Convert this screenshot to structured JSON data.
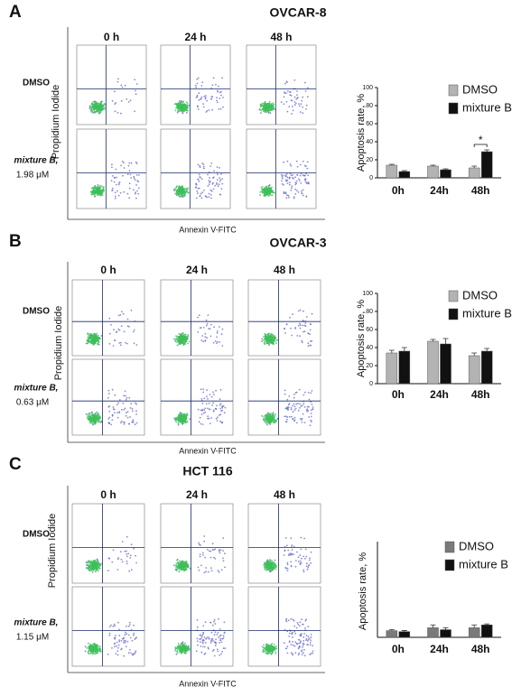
{
  "panels": [
    {
      "letter": "A",
      "title": "OVCAR-8",
      "times": [
        "0 h",
        "24 h",
        "48 h"
      ],
      "rows": [
        {
          "label": "DMSO"
        },
        {
          "label": "mixture B,",
          "dose": "1.98 μM"
        }
      ],
      "y_axis": "Propidium Iodide",
      "x_axis": "Annexin V-FITC"
    },
    {
      "letter": "B",
      "title": "OVCAR-3",
      "times": [
        "0 h",
        "24 h",
        "48 h"
      ],
      "rows": [
        {
          "label": "DMSO"
        },
        {
          "label": "mixture B,",
          "dose": "0.63 μM"
        }
      ],
      "y_axis": "Propidium Iodide",
      "x_axis": "Annexin V-FITC"
    },
    {
      "letter": "C",
      "title": "HCT 116",
      "times": [
        "0 h",
        "24 h",
        "48 h"
      ],
      "rows": [
        {
          "label": "DMSO"
        },
        {
          "label": "mixture B,",
          "dose": "1.15 μM"
        }
      ],
      "y_axis": "Propidium Iodide",
      "x_axis": "Annexin V-FITC"
    }
  ],
  "chart_data": [
    {
      "type": "bar",
      "ylabel": "Apoptosis rate, %",
      "categories": [
        "0h",
        "24h",
        "48h"
      ],
      "series": [
        {
          "name": "DMSO",
          "color": "#b3b3b3",
          "values": [
            14,
            13,
            11
          ],
          "errors": [
            1,
            1,
            2
          ]
        },
        {
          "name": "mixture B",
          "color": "#111111",
          "values": [
            7,
            9,
            29
          ],
          "errors": [
            1,
            1,
            2
          ]
        }
      ],
      "ylim": [
        0,
        100
      ],
      "yticks": [
        0,
        20,
        40,
        60,
        80,
        100
      ],
      "annotation": "*"
    },
    {
      "type": "bar",
      "ylabel": "Apoptosis rate, %",
      "categories": [
        "0h",
        "24h",
        "48h"
      ],
      "series": [
        {
          "name": "DMSO",
          "color": "#b3b3b3",
          "values": [
            34,
            47,
            31
          ],
          "errors": [
            3,
            2,
            3
          ]
        },
        {
          "name": "mixture B",
          "color": "#111111",
          "values": [
            36,
            44,
            36
          ],
          "errors": [
            4,
            6,
            3
          ]
        }
      ],
      "ylim": [
        0,
        100
      ],
      "yticks": [
        0,
        20,
        40,
        60,
        80,
        100
      ]
    },
    {
      "type": "bar",
      "ylabel": "Apoptosis rate, %",
      "categories": [
        "0h",
        "24h",
        "48h"
      ],
      "series": [
        {
          "name": "DMSO",
          "color": "#7a7a7a",
          "values": [
            7,
            10,
            10
          ],
          "errors": [
            1,
            3,
            3
          ]
        },
        {
          "name": "mixture B",
          "color": "#111111",
          "values": [
            6,
            8,
            13
          ],
          "errors": [
            1,
            2,
            1
          ]
        }
      ],
      "ylim": [
        0,
        100
      ]
    }
  ]
}
